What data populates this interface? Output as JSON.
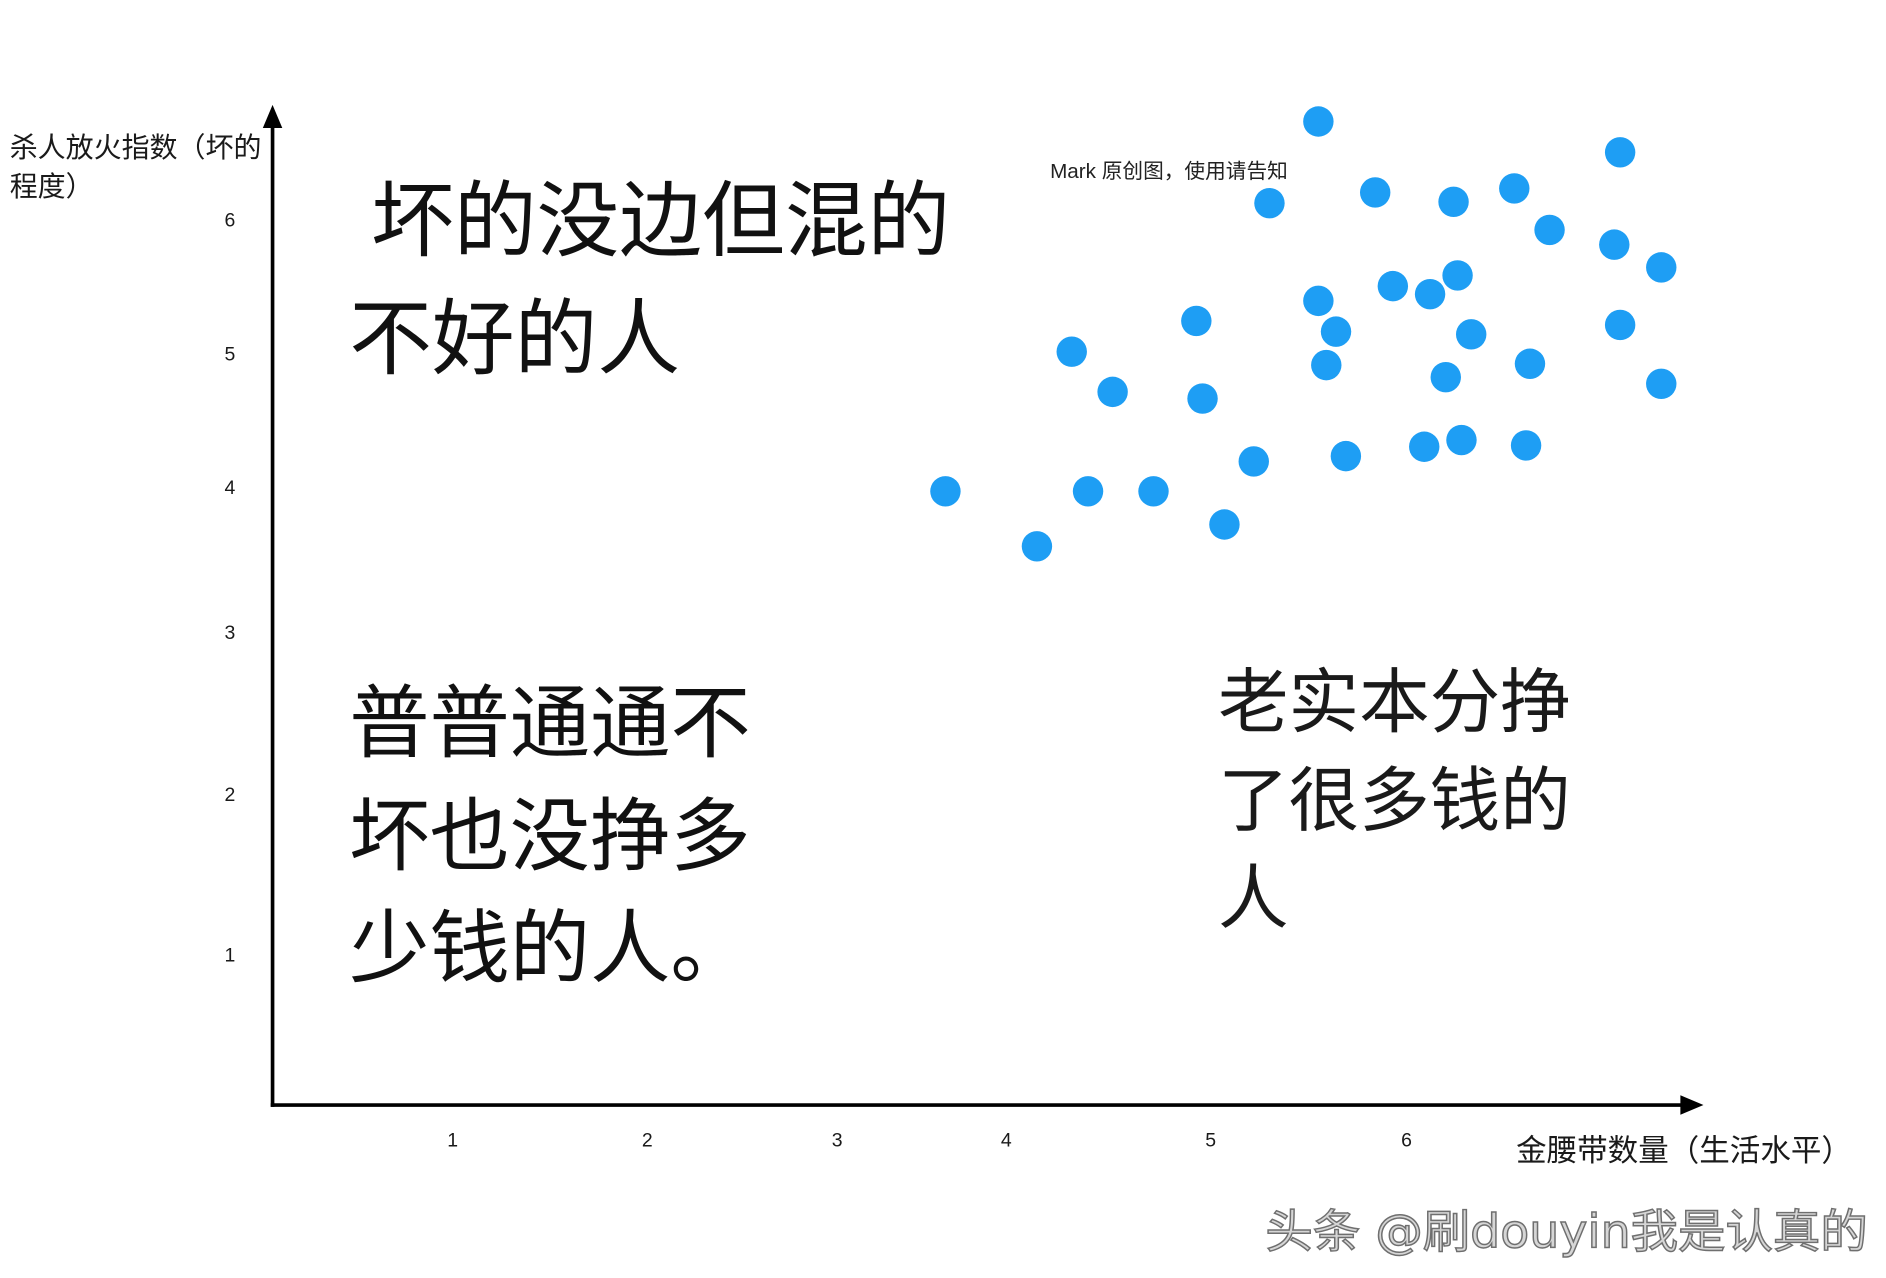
{
  "chart_data": {
    "type": "scatter",
    "xlabel": "金腰带数量（生活水平）",
    "ylabel": [
      "杀人放火指数（坏的",
      "程度）"
    ],
    "x_ticks": [
      1,
      2,
      3,
      4,
      5,
      6
    ],
    "y_ticks": [
      1,
      2,
      3,
      4,
      5,
      6
    ],
    "xlim": [
      0,
      7.5
    ],
    "ylim": [
      0,
      6.8
    ],
    "grid": false,
    "series": [
      {
        "color": "#1E9EF4",
        "points": [
          [
            5.55,
            6.73
          ],
          [
            7.09,
            6.5
          ],
          [
            5.3,
            6.12
          ],
          [
            5.84,
            6.2
          ],
          [
            6.24,
            6.13
          ],
          [
            6.55,
            6.23
          ],
          [
            6.73,
            5.92
          ],
          [
            7.06,
            5.81
          ],
          [
            7.3,
            5.64
          ],
          [
            5.93,
            5.5
          ],
          [
            6.12,
            5.44
          ],
          [
            6.26,
            5.58
          ],
          [
            5.55,
            5.39
          ],
          [
            5.64,
            5.16
          ],
          [
            4.93,
            5.24
          ],
          [
            6.33,
            5.14
          ],
          [
            7.09,
            5.21
          ],
          [
            4.32,
            5.01
          ],
          [
            5.59,
            4.91
          ],
          [
            6.63,
            4.92
          ],
          [
            6.2,
            4.82
          ],
          [
            4.52,
            4.71
          ],
          [
            4.96,
            4.66
          ],
          [
            7.3,
            4.77
          ],
          [
            5.22,
            4.19
          ],
          [
            5.69,
            4.23
          ],
          [
            6.09,
            4.3
          ],
          [
            6.28,
            4.35
          ],
          [
            6.61,
            4.31
          ],
          [
            3.64,
            3.97
          ],
          [
            4.4,
            3.97
          ],
          [
            4.72,
            3.97
          ],
          [
            4.15,
            3.59
          ],
          [
            5.07,
            3.74
          ]
        ]
      }
    ],
    "annotations": {
      "upper_left": [
        "坏的没边但混的",
        "不好的人"
      ],
      "lower_left": [
        "普普通通不",
        "坏也没挣多",
        "少钱的人。"
      ],
      "lower_right": [
        "老实本分挣",
        "了很多钱的",
        "人"
      ],
      "note": "Mark 原创图，使用请告知"
    }
  },
  "watermark": "头条 @刷douyin我是认真的"
}
